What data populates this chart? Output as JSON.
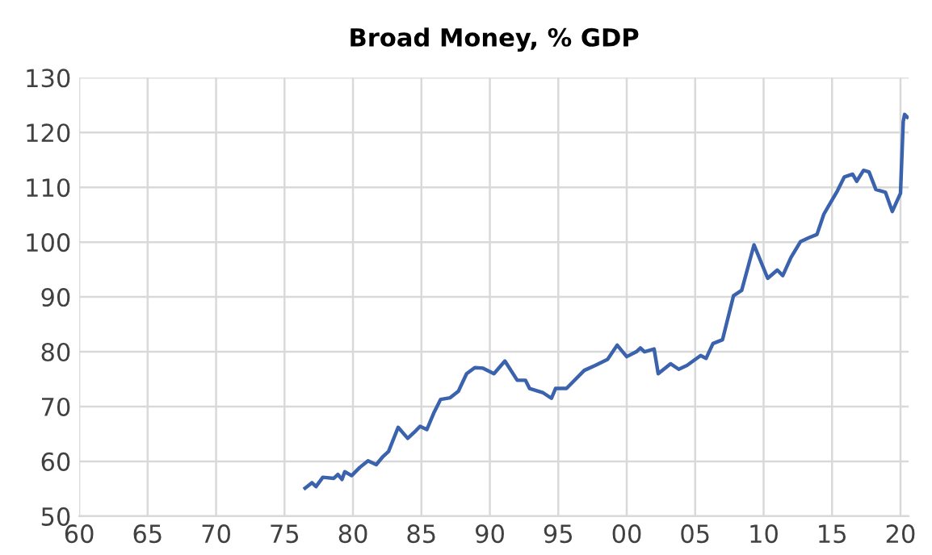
{
  "chart_data": {
    "type": "line",
    "title": "Broad Money, % GDP",
    "xlim": [
      1960,
      2020.6
    ],
    "ylim": [
      50,
      130
    ],
    "xticks": [
      {
        "value": 1960,
        "label": "60"
      },
      {
        "value": 1965,
        "label": "65"
      },
      {
        "value": 1970,
        "label": "70"
      },
      {
        "value": 1975,
        "label": "75"
      },
      {
        "value": 1980,
        "label": "80"
      },
      {
        "value": 1985,
        "label": "85"
      },
      {
        "value": 1990,
        "label": "90"
      },
      {
        "value": 1995,
        "label": "95"
      },
      {
        "value": 2000,
        "label": "00"
      },
      {
        "value": 2005,
        "label": "05"
      },
      {
        "value": 2010,
        "label": "10"
      },
      {
        "value": 2015,
        "label": "15"
      },
      {
        "value": 2020,
        "label": "20"
      }
    ],
    "yticks": [
      50,
      60,
      70,
      80,
      90,
      100,
      110,
      120,
      130
    ],
    "grid": true,
    "marker": "none",
    "line_style": "solid",
    "series": [
      {
        "color": "#3a62ad",
        "x": [
          1976.5,
          1977.0,
          1977.3,
          1977.8,
          1978.6,
          1978.9,
          1979.2,
          1979.4,
          1979.9,
          1980.5,
          1981.1,
          1981.7,
          1982.2,
          1982.6,
          1983.3,
          1984.0,
          1984.6,
          1984.9,
          1985.4,
          1985.9,
          1986.4,
          1987.1,
          1987.7,
          1988.3,
          1988.9,
          1989.5,
          1990.3,
          1991.1,
          1992.0,
          1992.6,
          1992.9,
          1993.9,
          1994.5,
          1994.8,
          1995.6,
          1996.9,
          1997.7,
          1998.6,
          1999.3,
          2000.0,
          2000.7,
          2001.0,
          2001.3,
          2002.0,
          2002.3,
          2003.2,
          2003.8,
          2004.4,
          2005.4,
          2005.8,
          2006.3,
          2007.0,
          2007.8,
          2008.4,
          2009.3,
          2010.3,
          2011.0,
          2011.4,
          2012.0,
          2012.7,
          2013.3,
          2013.9,
          2014.4,
          2015.4,
          2015.9,
          2016.5,
          2016.8,
          2017.3,
          2017.7,
          2018.2,
          2018.9,
          2019.4,
          2020.0,
          2020.2,
          2020.3,
          2020.5
        ],
        "values": [
          55.1,
          56.1,
          55.4,
          57.1,
          56.9,
          57.6,
          56.7,
          58.1,
          57.4,
          58.9,
          60.1,
          59.4,
          60.9,
          61.8,
          66.2,
          64.2,
          65.6,
          66.4,
          65.8,
          68.8,
          71.3,
          71.6,
          72.8,
          76.0,
          77.1,
          77.0,
          76.0,
          78.3,
          74.8,
          74.8,
          73.3,
          72.5,
          71.5,
          73.3,
          73.3,
          76.6,
          77.5,
          78.6,
          81.2,
          79.1,
          80.0,
          80.7,
          80.0,
          80.5,
          76.0,
          77.8,
          76.8,
          77.5,
          79.3,
          78.8,
          81.5,
          82.2,
          90.2,
          91.2,
          99.5,
          93.4,
          94.9,
          93.9,
          97.2,
          100.1,
          100.8,
          101.4,
          105.1,
          109.4,
          111.9,
          112.4,
          111.1,
          113.1,
          112.8,
          109.6,
          109.1,
          105.6,
          108.9,
          122.0,
          123.3,
          122.8
        ]
      }
    ]
  }
}
